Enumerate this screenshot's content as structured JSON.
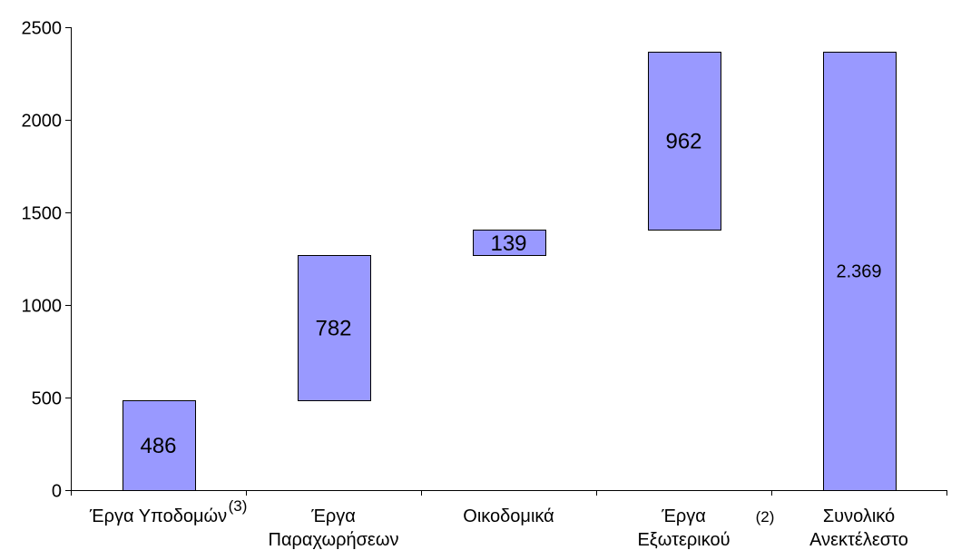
{
  "chart_data": {
    "type": "bar",
    "variant": "waterfall",
    "categories": [
      [
        "Έργα Υποδομών"
      ],
      [
        "Έργα",
        "Παραχωρήσεων"
      ],
      [
        "Οικοδομικά"
      ],
      [
        "Έργα",
        "Εξωτερικού"
      ],
      [
        "Συνολικό",
        "Ανεκτέλεστο"
      ]
    ],
    "values": [
      486,
      782,
      139,
      962,
      2369
    ],
    "value_labels": [
      "486",
      "782",
      "139",
      "962",
      "2.369"
    ],
    "bases": [
      0,
      486,
      1268,
      1407,
      0
    ],
    "footnotes": [
      {
        "category_index": 0,
        "text": "(3)"
      },
      {
        "category_index": 3,
        "text": "(2)"
      }
    ],
    "yticks": [
      0,
      500,
      1000,
      1500,
      2000,
      2500
    ],
    "ylim": [
      0,
      2500
    ],
    "title": "",
    "xlabel": "",
    "ylabel": "",
    "grid": false,
    "legend": "none",
    "bar_color": "#9999FF",
    "bar_border_color": "#000000"
  }
}
